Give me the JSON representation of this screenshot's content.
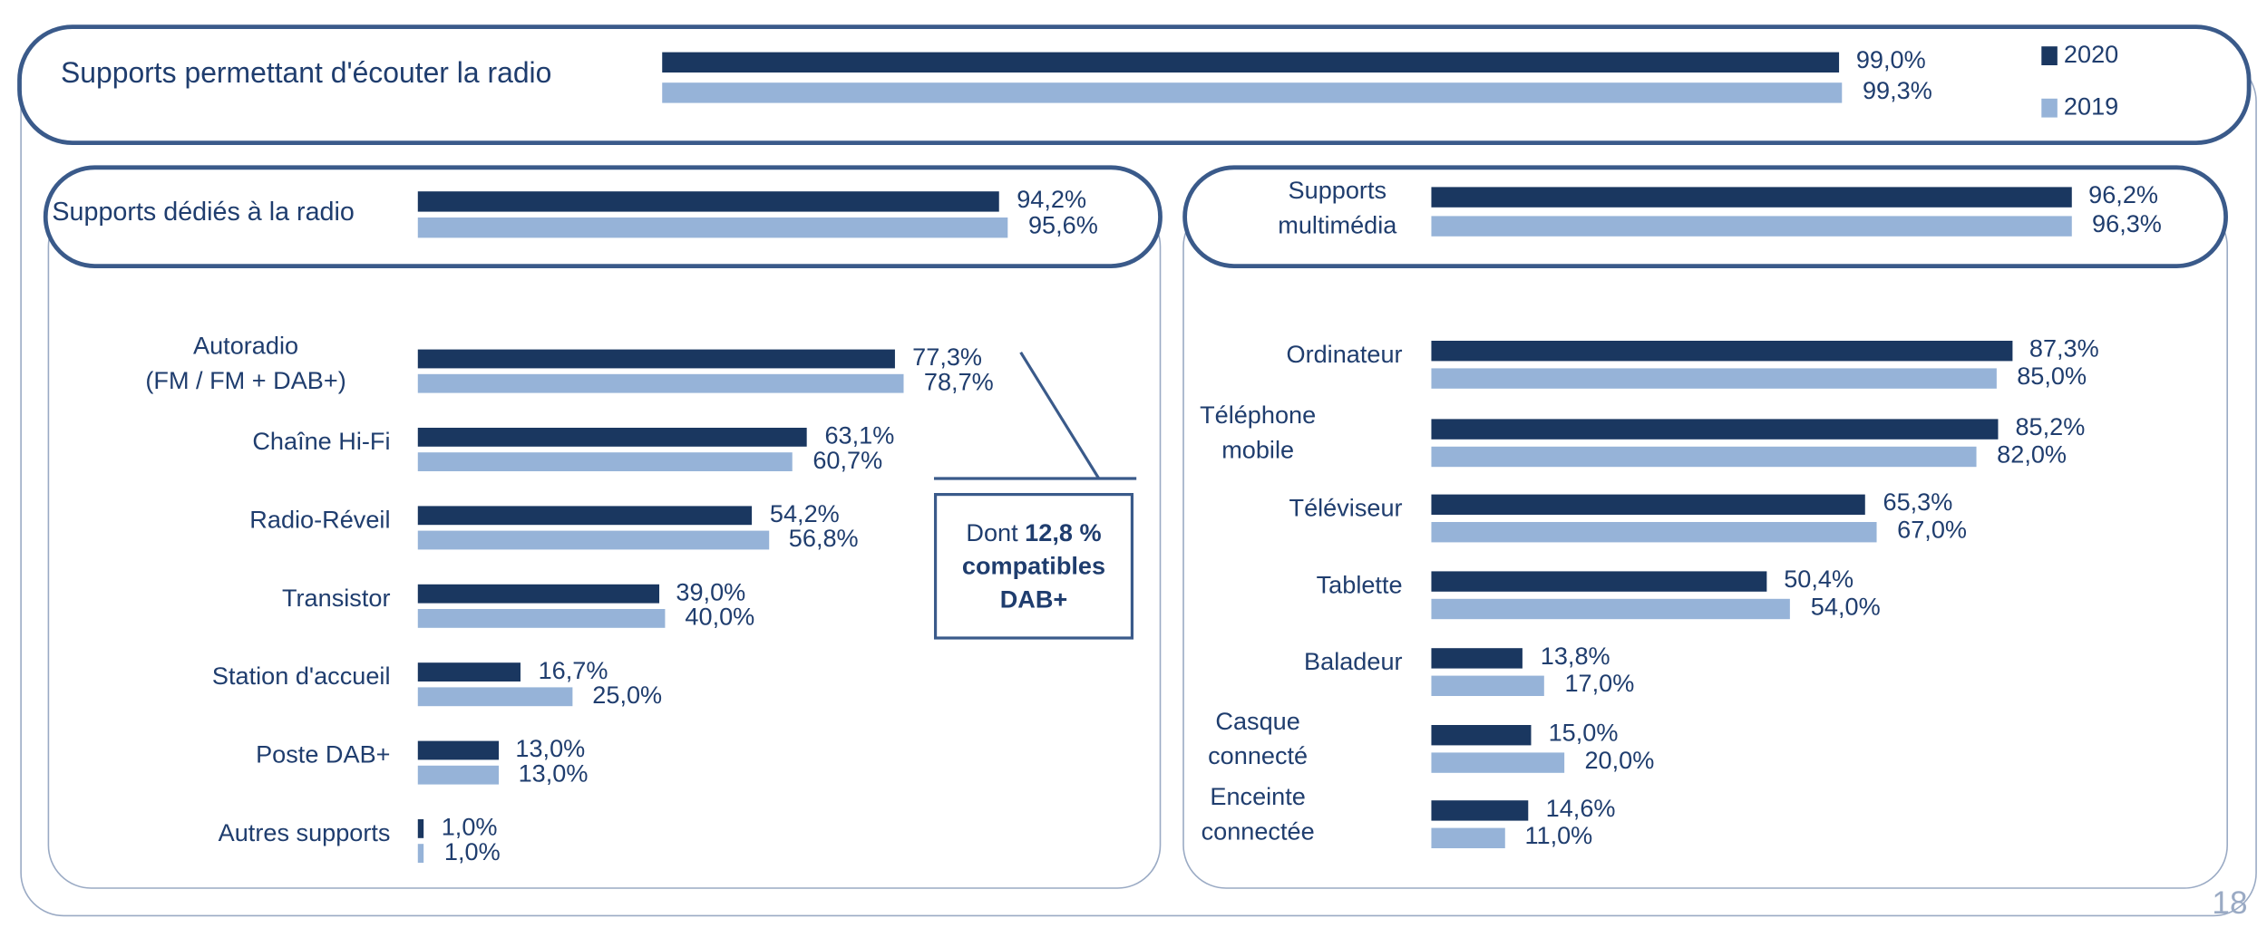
{
  "colors": {
    "2020": "#1a3760",
    "2019": "#96b3d8",
    "border": "#3a5a8a",
    "text": "#1f3d6e"
  },
  "legend": [
    {
      "label": "2020",
      "color": "#1a3760"
    },
    {
      "label": "2019",
      "color": "#96b3d8"
    }
  ],
  "page_number": "18",
  "callout": {
    "prefix": "Dont ",
    "bold": "12,8 %",
    "rest": "compatibles\nDAB+"
  },
  "chart_data": [
    {
      "type": "bar",
      "orientation": "horizontal",
      "title": "Supports permettant d'écouter la radio",
      "series": [
        {
          "name": "2020",
          "values": [
            99.0
          ],
          "labels": [
            "99,0%"
          ]
        },
        {
          "name": "2019",
          "values": [
            99.3
          ],
          "labels": [
            "99,3%"
          ]
        }
      ]
    },
    {
      "type": "bar",
      "orientation": "horizontal",
      "title": "Supports dédiés à la radio",
      "series": [
        {
          "name": "2020",
          "values": [
            94.2
          ],
          "labels": [
            "94,2%"
          ]
        },
        {
          "name": "2019",
          "values": [
            95.6
          ],
          "labels": [
            "95,6%"
          ]
        }
      ]
    },
    {
      "type": "bar",
      "orientation": "horizontal",
      "title": "Supports\nmultimédia",
      "series": [
        {
          "name": "2020",
          "values": [
            96.2
          ],
          "labels": [
            "96,2%"
          ]
        },
        {
          "name": "2019",
          "values": [
            96.3
          ],
          "labels": [
            "96,3%"
          ]
        }
      ]
    },
    {
      "type": "bar",
      "orientation": "horizontal",
      "categories": [
        "Autoradio\n(FM / FM + DAB+)",
        "Chaîne Hi-Fi",
        "Radio-Réveil",
        "Transistor",
        "Station d'accueil",
        "Poste DAB+",
        "Autres supports"
      ],
      "series": [
        {
          "name": "2020",
          "values": [
            77.3,
            63.1,
            54.2,
            39.0,
            16.7,
            13.0,
            1.0
          ],
          "labels": [
            "77,3%",
            "63,1%",
            "54,2%",
            "39,0%",
            "16,7%",
            "13,0%",
            "1,0%"
          ]
        },
        {
          "name": "2019",
          "values": [
            78.7,
            60.7,
            56.8,
            40.0,
            25.0,
            13.0,
            1.0
          ],
          "labels": [
            "78,7%",
            "60,7%",
            "56,8%",
            "40,0%",
            "25,0%",
            "13,0%",
            "1,0%"
          ]
        }
      ]
    },
    {
      "type": "bar",
      "orientation": "horizontal",
      "categories": [
        "Ordinateur",
        "Téléphone\nmobile",
        "Téléviseur",
        "Tablette",
        "Baladeur",
        "Casque\nconnecté",
        "Enceinte\nconnectée"
      ],
      "series": [
        {
          "name": "2020",
          "values": [
            87.3,
            85.2,
            65.3,
            50.4,
            13.8,
            15.0,
            14.6
          ],
          "labels": [
            "87,3%",
            "85,2%",
            "65,3%",
            "50,4%",
            "13,8%",
            "15,0%",
            "14,6%"
          ]
        },
        {
          "name": "2019",
          "values": [
            85.0,
            82.0,
            67.0,
            54.0,
            17.0,
            20.0,
            11.0
          ],
          "labels": [
            "85,0%",
            "82,0%",
            "67,0%",
            "54,0%",
            "17,0%",
            "20,0%",
            "11,0%"
          ]
        }
      ]
    }
  ]
}
